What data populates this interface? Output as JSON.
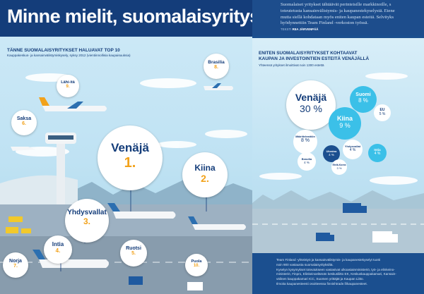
{
  "left": {
    "title": "Minne mielit, suomalaisyritys?",
    "subtitle": "TÄNNE SUOMALAISYRITYKSET HALUAVAT TOP 10",
    "note": "Kauppakeskus- ja kansainvälistymiskysely, syksy 2012 (vientiinnollisia kaupaisuuksia)",
    "destinations": [
      {
        "name": "Venäjä",
        "rank": "1."
      },
      {
        "name": "Kiina",
        "rank": "2."
      },
      {
        "name": "Yhdysvallat",
        "rank": "3."
      },
      {
        "name": "Intia",
        "rank": "4."
      },
      {
        "name": "Ruotsi",
        "rank": "5."
      },
      {
        "name": "Saksa",
        "rank": "6."
      },
      {
        "name": "Norja",
        "rank": "7."
      },
      {
        "name": "Brasilia",
        "rank": "8."
      },
      {
        "name": "Lähi-itä",
        "rank": "9."
      },
      {
        "name": "Puola",
        "rank": "10."
      }
    ]
  },
  "right": {
    "intro_lines": [
      "Suomalaiset yritykset tähtäävät perinteisille markkinoille, s",
      "toteutetusta kansainvälistymis- ja kaupanestekyselystä. Etene",
      "mutta siellä kohdataan myös eniten kaupan esteitä. Selvityks",
      "hyödynnettiin Team Finland -verkoston työssä."
    ],
    "author_label": "TEKSTI",
    "author_name": "RIIA JÄRVENPÄÄ",
    "heading_line1": "ENITEN SUOMALAISYRITYKSET KOHTAAVAT",
    "heading_line2": "KAUPAN JA INVESTOINTIEN ESTEITÄ VENÄJÄLLÄ",
    "note": "Yhteensä yritykset ilmoittivat noin 1300 estettä",
    "barriers": [
      {
        "name": "Venäjä",
        "value": "30 %"
      },
      {
        "name": "Suomi",
        "value": "8 %"
      },
      {
        "name": "Kiina",
        "value": "9 %"
      },
      {
        "name": "EU",
        "value": "5 %"
      },
      {
        "name": "Määrittelemätön",
        "value": "8 %"
      },
      {
        "name": "Yhdysvallat",
        "value": "4 %"
      },
      {
        "name": "Intia",
        "value": "4 %"
      },
      {
        "name": "Ukraina",
        "value": "4 %"
      },
      {
        "name": "Brasilia",
        "value": "4 %"
      },
      {
        "name": "Etelä-Korea",
        "value": "3 %"
      }
    ],
    "footer": [
      "Team Finland -yhteistyö ja kansainvälistymis- ja kaupanestekyselyt tuotti",
      "noin 900 vastausta suomalaisyrityksiltä.",
      "Kyselyn kysymykset toteutukseen vastasivat ulkoasiainministeriö, työ- ja elinkeino-",
      "ministeriö, Finpro, Elinkeinoelämän keskusliitto EK, Keskuskauppakamari, Kansain-",
      "välinen kauppakamari ICC, Suomen yrittäjät ja Kaupan Liitto.",
      "Ilmoita kaupanesteesti osoitteessa finnishtrade.fi/kaupanesteet."
    ]
  },
  "colors": {
    "navy": "#143d7a",
    "orange": "#f2a21b",
    "teal": "#3bc0e8",
    "blue": "#1b4f8f"
  }
}
